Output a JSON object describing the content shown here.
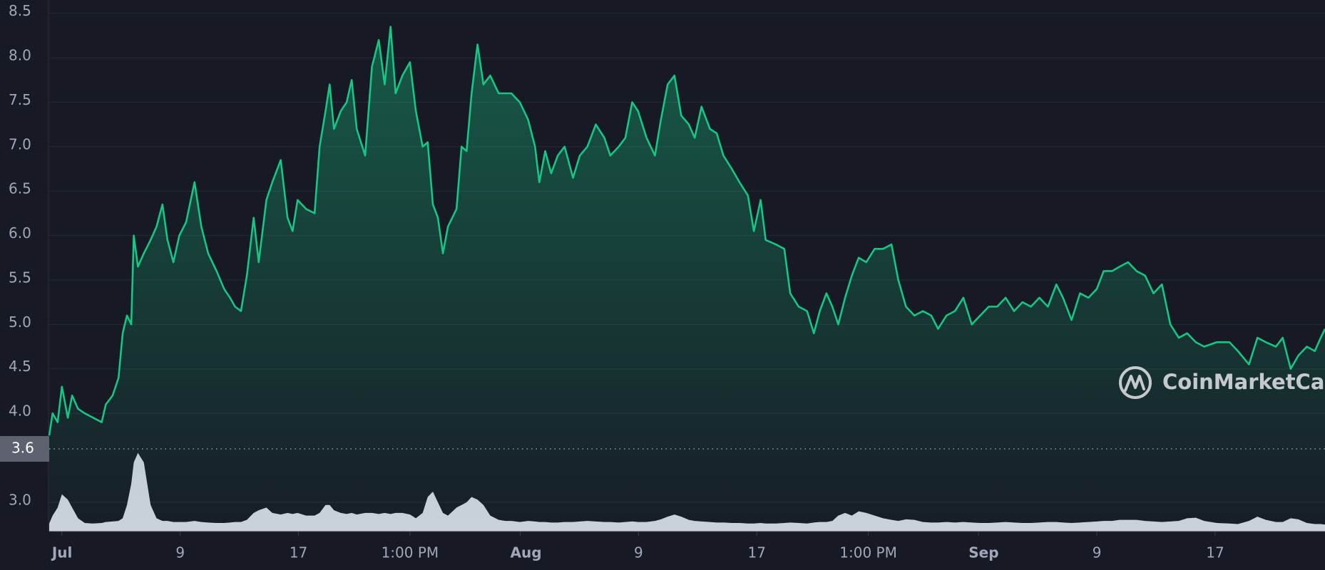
{
  "chart_data": {
    "type": "line",
    "x": [
      -0.86,
      -0.63,
      -0.29,
      0,
      0.4,
      0.69,
      1.09,
      1.54,
      2.11,
      2.69,
      2.97,
      3.43,
      3.83,
      4.11,
      4.4,
      4.69,
      4.86,
      5.14,
      5.54,
      6,
      6.4,
      6.8,
      7.14,
      7.54,
      7.94,
      8.4,
      8.97,
      9.43,
      9.89,
      10.46,
      10.97,
      11.37,
      11.71,
      12.11,
      12.51,
      12.97,
      13.31,
      13.83,
      14.23,
      14.8,
      15.26,
      15.6,
      15.94,
      16.51,
      17.09,
      17.43,
      17.83,
      18.11,
      18.4,
      18.86,
      19.26,
      19.6,
      19.94,
      20.51,
      20.97,
      21.43,
      21.83,
      22.23,
      22.57,
      23.03,
      23.54,
      23.94,
      24.4,
      24.74,
      25.09,
      25.43,
      25.77,
      26.11,
      26.69,
      27.03,
      27.37,
      27.71,
      28.11,
      28.51,
      28.97,
      29.54,
      30,
      30.4,
      30.97,
      31.54,
      32,
      32.29,
      32.69,
      33.09,
      33.54,
      34,
      34.57,
      35.03,
      35.54,
      36.11,
      36.69,
      37.09,
      37.66,
      38.11,
      38.57,
      38.97,
      39.54,
      40.11,
      40.51,
      40.97,
      41.43,
      41.89,
      42.4,
      42.8,
      43.26,
      43.83,
      44.29,
      44.74,
      45.31,
      45.83,
      46.4,
      46.8,
      47.26,
      47.6,
      48.29,
      48.86,
      49.26,
      49.83,
      50.4,
      50.86,
      51.26,
      51.71,
      52.11,
      52.51,
      52.97,
      53.43,
      53.89,
      54.4,
      54.97,
      55.54,
      56.11,
      56.57,
      57.09,
      57.66,
      58.23,
      58.8,
      59.26,
      59.83,
      60.4,
      60.97,
      61.54,
      62.11,
      62.69,
      63.26,
      63.83,
      64.4,
      64.97,
      65.54,
      66.11,
      66.69,
      67.26,
      67.71,
      68.29,
      68.86,
      69.43,
      70,
      70.46,
      71.03,
      71.54,
      72.11,
      72.69,
      73.26,
      73.83,
      74.4,
      74.97,
      75.54,
      76.11,
      76.69,
      77.26,
      78.11,
      78.97,
      79.54,
      80.29,
      80.86,
      81.43,
      82.11,
      82.57,
      83.11,
      83.63,
      84.2,
      84.74,
      85.14,
      85.43
    ],
    "series": [
      {
        "color": "#16c784",
        "values": [
          3.75,
          4.0,
          3.9,
          4.3,
          3.95,
          4.2,
          4.05,
          4.0,
          3.95,
          3.9,
          4.1,
          4.2,
          4.4,
          4.9,
          5.1,
          5.0,
          6.0,
          5.65,
          5.8,
          5.95,
          6.1,
          6.35,
          5.95,
          5.7,
          6.0,
          6.15,
          6.6,
          6.1,
          5.8,
          5.6,
          5.4,
          5.3,
          5.2,
          5.15,
          5.55,
          6.2,
          5.7,
          6.4,
          6.6,
          6.85,
          6.2,
          6.05,
          6.4,
          6.3,
          6.25,
          7.0,
          7.4,
          7.7,
          7.2,
          7.4,
          7.5,
          7.75,
          7.2,
          6.9,
          7.9,
          8.2,
          7.7,
          8.35,
          7.6,
          7.8,
          7.95,
          7.4,
          7.0,
          7.05,
          6.35,
          6.2,
          5.8,
          6.1,
          6.3,
          7.0,
          6.95,
          7.6,
          8.15,
          7.7,
          7.8,
          7.6,
          7.6,
          7.6,
          7.5,
          7.3,
          7.0,
          6.6,
          6.95,
          6.7,
          6.9,
          7.0,
          6.65,
          6.9,
          7.0,
          7.25,
          7.1,
          6.9,
          7.0,
          7.1,
          7.5,
          7.4,
          7.1,
          6.9,
          7.3,
          7.7,
          7.8,
          7.35,
          7.25,
          7.1,
          7.45,
          7.2,
          7.15,
          6.9,
          6.75,
          6.6,
          6.45,
          6.05,
          6.4,
          5.95,
          5.9,
          5.85,
          5.35,
          5.2,
          5.15,
          4.9,
          5.15,
          5.35,
          5.2,
          5.0,
          5.3,
          5.55,
          5.75,
          5.7,
          5.85,
          5.85,
          5.9,
          5.5,
          5.2,
          5.1,
          5.15,
          5.1,
          4.95,
          5.1,
          5.15,
          5.3,
          5.0,
          5.1,
          5.2,
          5.2,
          5.3,
          5.15,
          5.25,
          5.2,
          5.3,
          5.2,
          5.45,
          5.3,
          5.05,
          5.35,
          5.3,
          5.4,
          5.6,
          5.6,
          5.65,
          5.7,
          5.6,
          5.55,
          5.35,
          5.45,
          5.0,
          4.85,
          4.9,
          4.8,
          4.75,
          4.8,
          4.8,
          4.7,
          4.55,
          4.85,
          4.8,
          4.75,
          4.85,
          4.5,
          4.65,
          4.75,
          4.7,
          4.85,
          4.95
        ]
      },
      {
        "color": "#d8dbe6",
        "axis": "y2",
        "values": [
          1.5,
          3,
          4.5,
          7,
          6,
          4.5,
          2.5,
          1.6,
          1.5,
          1.6,
          1.8,
          1.9,
          2,
          2.5,
          5,
          9,
          13,
          14.8,
          13,
          5,
          2.5,
          2,
          2,
          1.8,
          1.8,
          1.8,
          2,
          1.8,
          1.7,
          1.6,
          1.6,
          1.7,
          1.8,
          1.8,
          2.2,
          3.5,
          4,
          4.5,
          3.5,
          3.2,
          3.5,
          3.3,
          3.5,
          3,
          3,
          3.5,
          5,
          5,
          4,
          3.5,
          3.3,
          3.5,
          3.2,
          3.5,
          3.5,
          3.3,
          3.5,
          3.3,
          3.5,
          3.5,
          3.2,
          2.5,
          3.5,
          6.5,
          7.5,
          5.5,
          3.5,
          3,
          4.5,
          5,
          5.5,
          6.5,
          6,
          5,
          3,
          2.2,
          2,
          2,
          1.8,
          2,
          1.9,
          1.8,
          1.8,
          1.7,
          1.7,
          1.8,
          1.8,
          1.9,
          2,
          1.9,
          1.8,
          1.8,
          1.7,
          1.8,
          1.9,
          1.8,
          1.8,
          2,
          2.3,
          2.8,
          3.2,
          2.8,
          2.2,
          2,
          1.9,
          1.8,
          1.7,
          1.7,
          1.6,
          1.6,
          1.5,
          1.5,
          1.6,
          1.5,
          1.5,
          1.6,
          1.7,
          1.6,
          1.5,
          1.7,
          1.8,
          1.8,
          2,
          3,
          3.5,
          3,
          3.8,
          3.5,
          3,
          2.5,
          2.2,
          2,
          2.3,
          2.2,
          1.8,
          1.7,
          1.7,
          1.8,
          1.7,
          1.8,
          1.7,
          1.6,
          1.6,
          1.7,
          1.8,
          1.7,
          1.6,
          1.6,
          1.7,
          1.8,
          1.8,
          1.7,
          1.6,
          1.7,
          1.8,
          1.9,
          2,
          2,
          2.2,
          2.2,
          2.2,
          2,
          1.9,
          1.8,
          1.9,
          2,
          2.5,
          2.6,
          2,
          1.6,
          1.5,
          1.4,
          2,
          2.8,
          2.2,
          1.8,
          1.8,
          2.5,
          2.3,
          1.6,
          1.4,
          1.4,
          1.3
        ]
      }
    ],
    "xlim": [
      -0.86,
      85.43
    ],
    "xticks": [
      {
        "value": 0,
        "label": "Jul"
      },
      {
        "value": 8,
        "label": "9"
      },
      {
        "value": 16,
        "label": "17"
      },
      {
        "value": 23.54,
        "label": "1:00 PM"
      },
      {
        "value": 31,
        "label": "Aug"
      },
      {
        "value": 39,
        "label": "9"
      },
      {
        "value": 47,
        "label": "17"
      },
      {
        "value": 54.54,
        "label": "1:00 PM"
      },
      {
        "value": 62,
        "label": "Sep"
      },
      {
        "value": 70,
        "label": "9"
      },
      {
        "value": 78,
        "label": "17"
      }
    ],
    "ylim": [
      2.67,
      8.65
    ],
    "yticks": [
      {
        "value": 3,
        "label": "3.0"
      },
      {
        "value": 4,
        "label": "4.0"
      },
      4.5,
      {
        "value": 5,
        "label": "5.0"
      },
      5.5,
      {
        "value": 6,
        "label": "6.0"
      },
      6.5,
      {
        "value": 7,
        "label": "7.0"
      },
      7.5,
      {
        "value": 8,
        "label": "8.0"
      },
      8.5
    ],
    "y2lim": [
      0,
      100
    ],
    "grid": true,
    "reference_value": 3.6,
    "watermark": "CoinMarketCap"
  }
}
